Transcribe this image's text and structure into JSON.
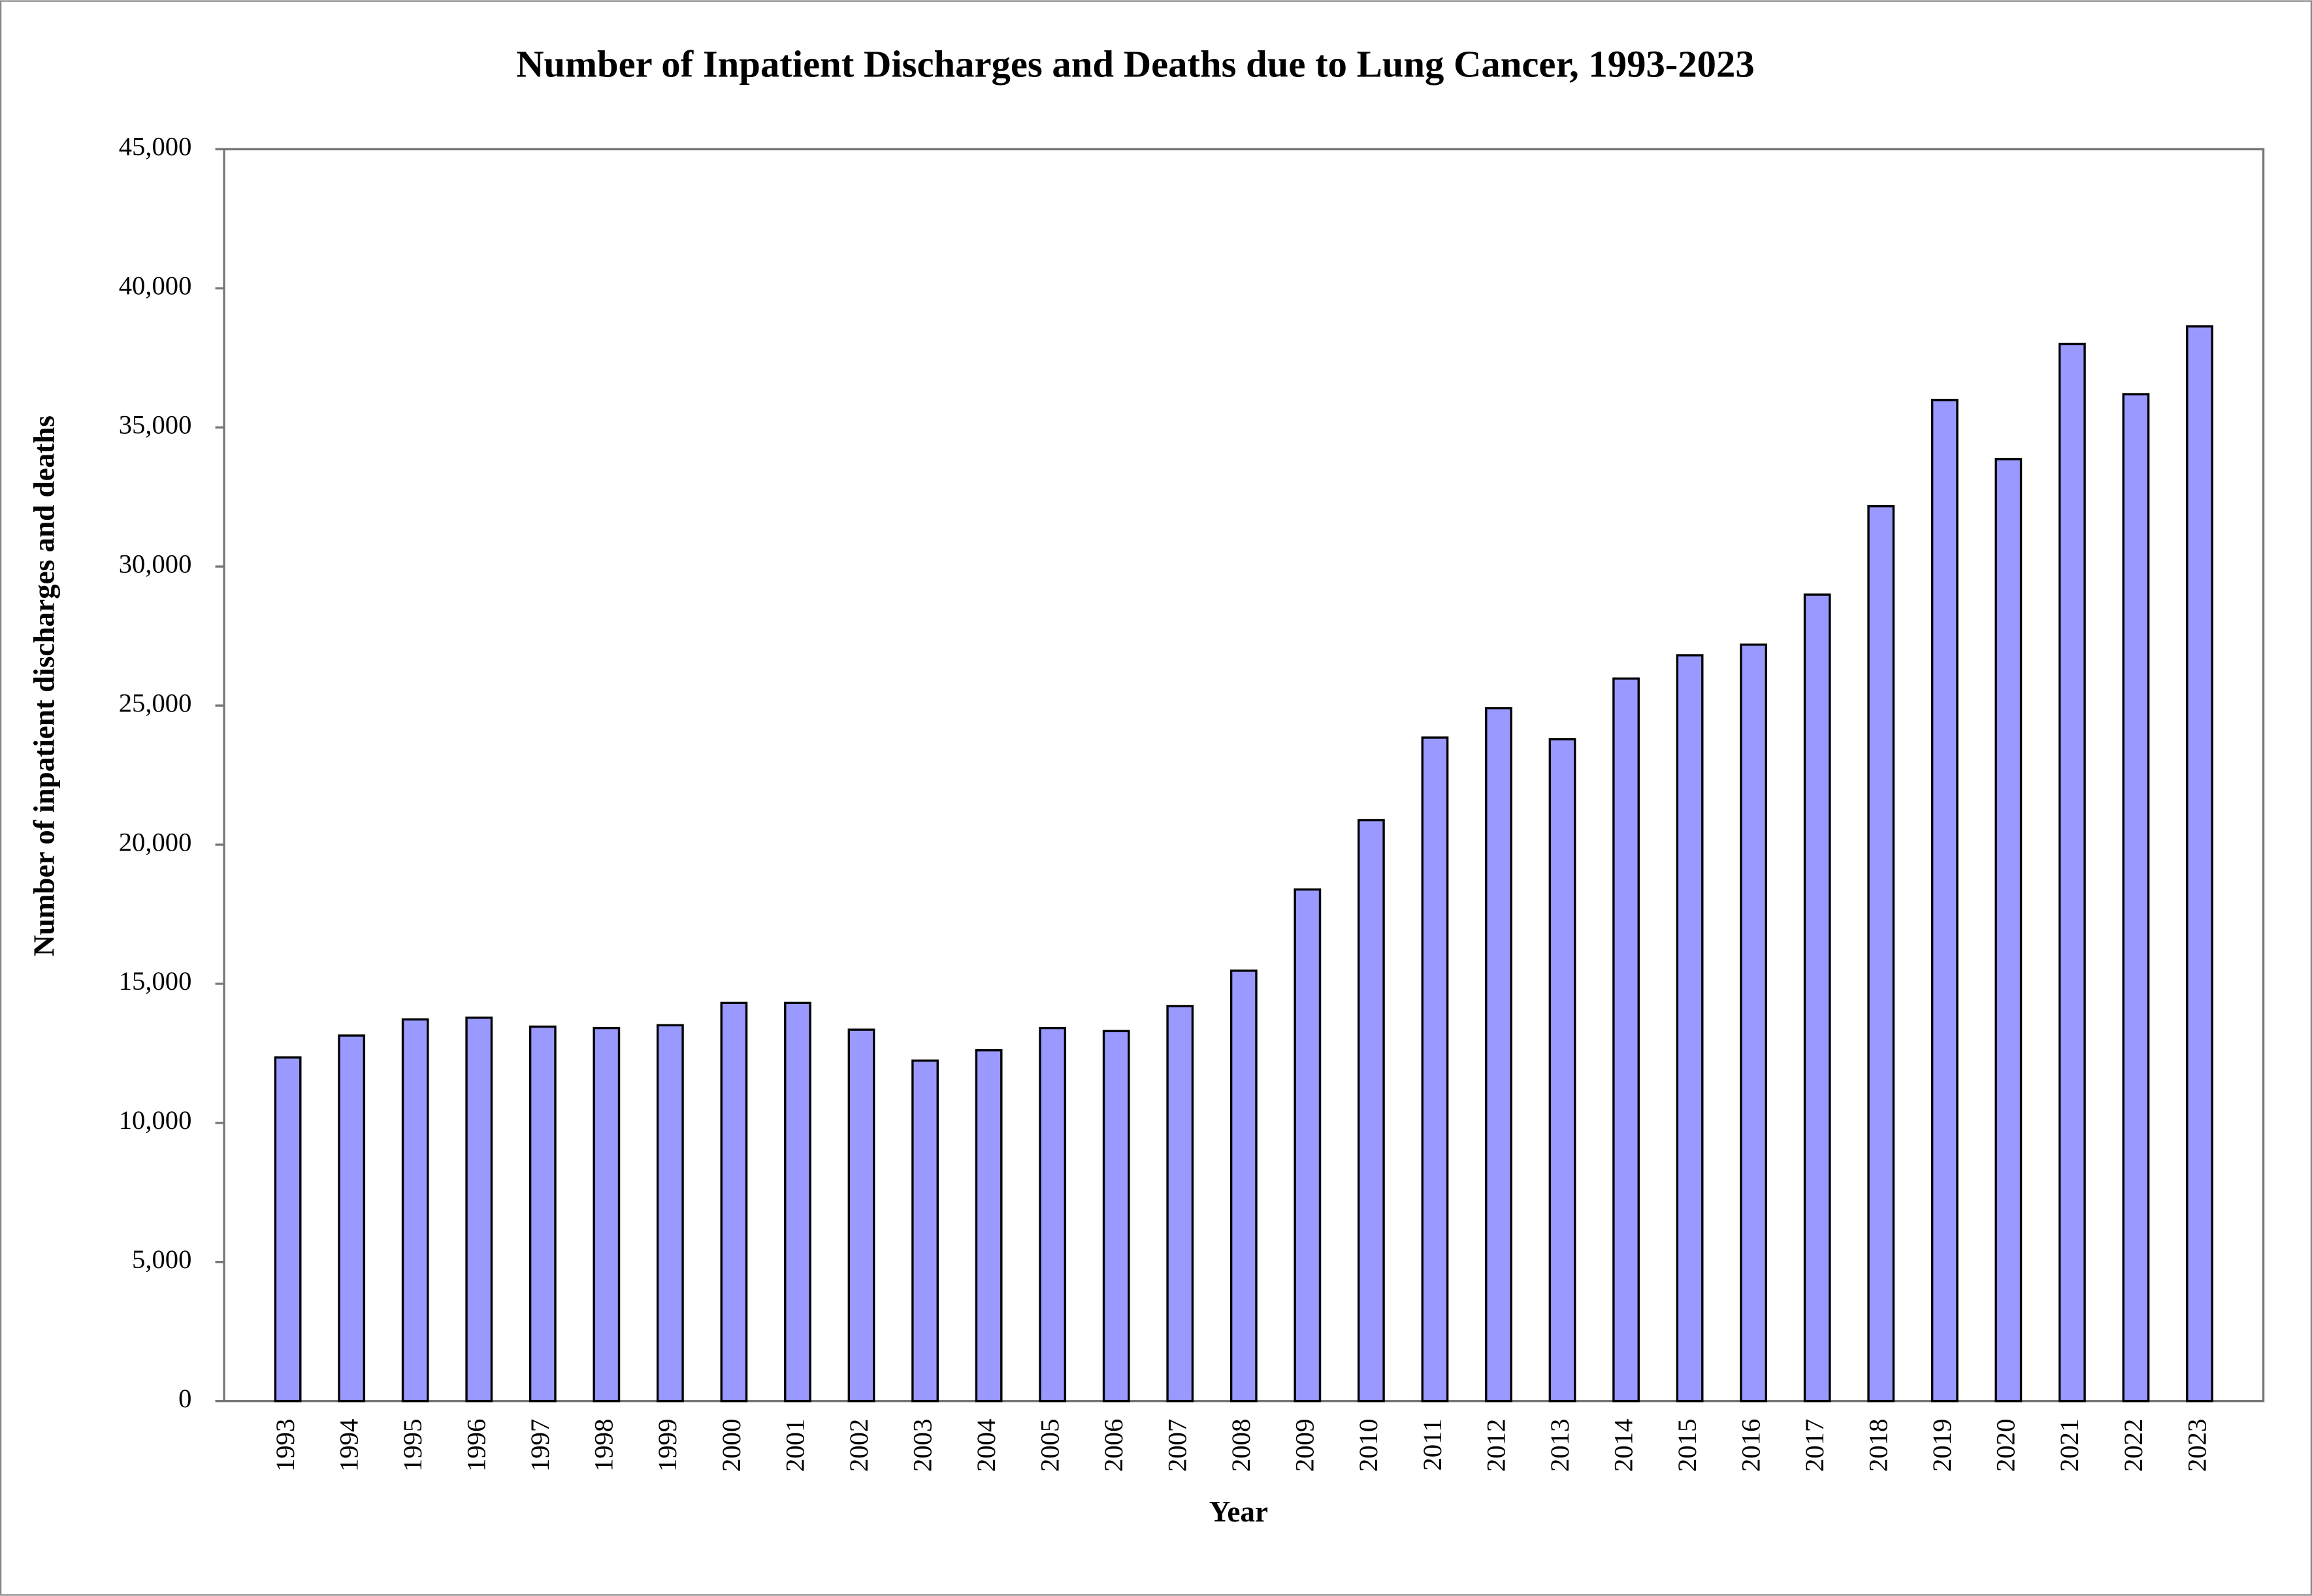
{
  "chart_data": {
    "type": "bar",
    "title": "Number of Inpatient Discharges and Deaths due to Lung Cancer, 1993-2023",
    "x_label": "Year",
    "y_label": "Number of inpatient discharges and deaths",
    "categories": [
      "1993",
      "1994",
      "1995",
      "1996",
      "1997",
      "1998",
      "1999",
      "2000",
      "2001",
      "2002",
      "2003",
      "2004",
      "2005",
      "2006",
      "2007",
      "2008",
      "2009",
      "2010",
      "2011",
      "2012",
      "2013",
      "2014",
      "2015",
      "2016",
      "2017",
      "2018",
      "2019",
      "2020",
      "2021",
      "2022",
      "2023"
    ],
    "values": [
      12350,
      13140,
      13720,
      13780,
      13460,
      13410,
      13510,
      14310,
      14310,
      13350,
      12240,
      12610,
      13410,
      13300,
      14200,
      15470,
      18390,
      20880,
      23850,
      24910,
      23790,
      25970,
      26810,
      27190,
      28990,
      32170,
      35980,
      33860,
      38000,
      36190,
      38630
    ],
    "color": "#9999ff",
    "ylim": [
      0,
      45000
    ],
    "yticks": [
      0,
      {
        "value": 5000,
        "label": "5,000"
      },
      {
        "value": 10000,
        "label": "10,000"
      },
      {
        "value": 15000,
        "label": "15,000"
      },
      {
        "value": 20000,
        "label": "20,000"
      },
      {
        "value": 25000,
        "label": "25,000"
      },
      {
        "value": 30000,
        "label": "30,000"
      },
      {
        "value": 35000,
        "label": "35,000"
      },
      {
        "value": 40000,
        "label": "40,000"
      },
      {
        "value": 45000,
        "label": "45,000"
      }
    ],
    "grid": false
  }
}
